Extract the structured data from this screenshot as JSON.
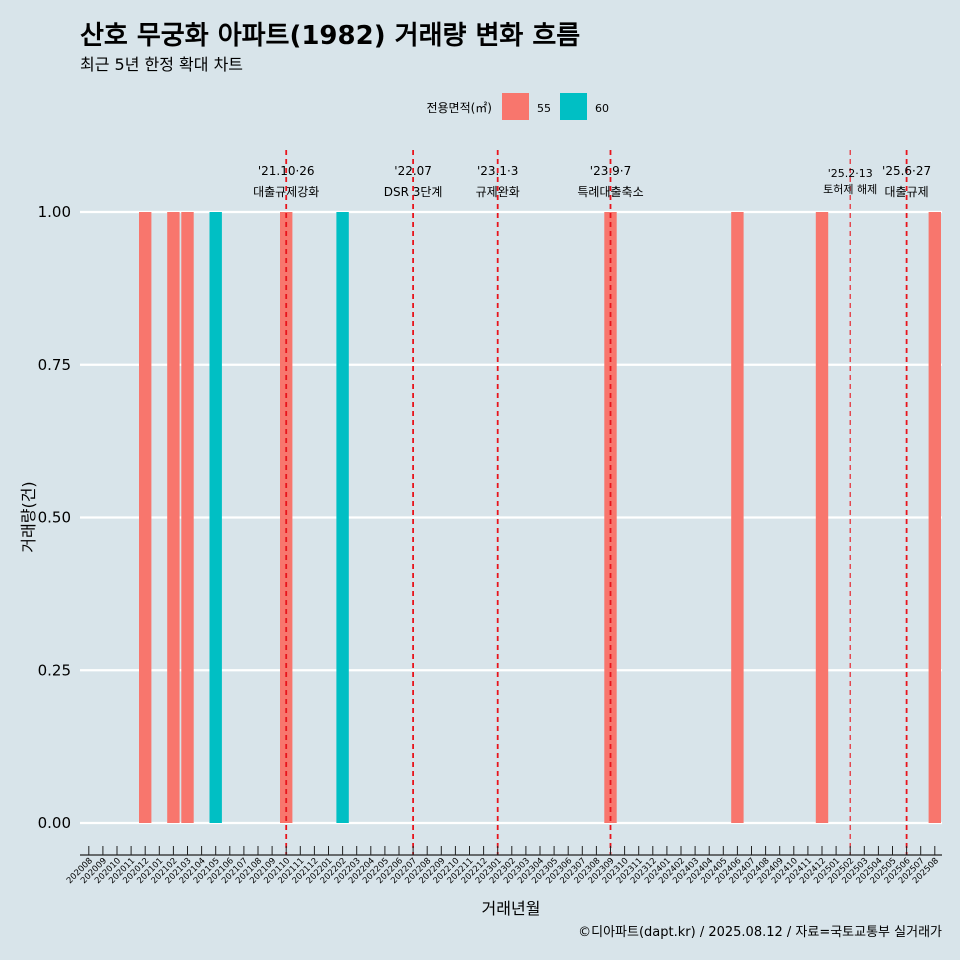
{
  "chart_data": {
    "type": "bar",
    "title": "산호 무궁화 아파트(1982) 거래량 변화 흐름",
    "subtitle": "최근 5년 한정 확대 차트",
    "xlabel": "거래년월",
    "ylabel": "거래량(건)",
    "ylim": [
      0,
      1
    ],
    "yticks": [
      "0.00",
      "0.25",
      "0.50",
      "0.75",
      "1.00"
    ],
    "grid": "horizontal",
    "legend": {
      "title": "전용면적(㎡)",
      "placement": "top-center",
      "entries": [
        {
          "name": "55",
          "color": "#f8766d"
        },
        {
          "name": "60",
          "color": "#00bfc4"
        }
      ]
    },
    "categories": [
      "202008",
      "202009",
      "202010",
      "202011",
      "202012",
      "202101",
      "202102",
      "202103",
      "202104",
      "202105",
      "202106",
      "202107",
      "202108",
      "202109",
      "202110",
      "202111",
      "202112",
      "202201",
      "202202",
      "202203",
      "202204",
      "202205",
      "202206",
      "202207",
      "202208",
      "202209",
      "202210",
      "202211",
      "202212",
      "202301",
      "202302",
      "202303",
      "202304",
      "202305",
      "202306",
      "202307",
      "202308",
      "202309",
      "202310",
      "202311",
      "202312",
      "202401",
      "202402",
      "202403",
      "202404",
      "202405",
      "202406",
      "202407",
      "202408",
      "202409",
      "202410",
      "202411",
      "202412",
      "202501",
      "202502",
      "202503",
      "202504",
      "202505",
      "202506",
      "202507",
      "202508"
    ],
    "series": [
      {
        "name": "55",
        "color": "#f8766d",
        "points": [
          {
            "x": "202012",
            "y": 1
          },
          {
            "x": "202102",
            "y": 1
          },
          {
            "x": "202103",
            "y": 1
          },
          {
            "x": "202110",
            "y": 1
          },
          {
            "x": "202309",
            "y": 1
          },
          {
            "x": "202406",
            "y": 1
          },
          {
            "x": "202412",
            "y": 1
          },
          {
            "x": "202508",
            "y": 1
          }
        ]
      },
      {
        "name": "60",
        "color": "#00bfc4",
        "points": [
          {
            "x": "202105",
            "y": 1
          },
          {
            "x": "202202",
            "y": 1
          }
        ]
      }
    ],
    "events": [
      {
        "x": "202110",
        "date": "'21.10·26",
        "label": "대출규제강화",
        "style": "bold"
      },
      {
        "x": "202207",
        "date": "'22.07",
        "label": "DSR 3단계",
        "style": "bold"
      },
      {
        "x": "202301",
        "date": "'23.1·3",
        "label": "규제완화",
        "style": "bold"
      },
      {
        "x": "202309",
        "date": "'23.9·7",
        "label": "특례대출축소",
        "style": "bold"
      },
      {
        "x": "202502",
        "date": "'25.2·13",
        "label": "토허제 해제",
        "style": "thin"
      },
      {
        "x": "202506",
        "date": "'25.6·27",
        "label": "대출규제",
        "style": "bold"
      }
    ],
    "caption": "©디아파트(dapt.kr) / 2025.08.12 / 자료=국토교통부 실거래가"
  }
}
